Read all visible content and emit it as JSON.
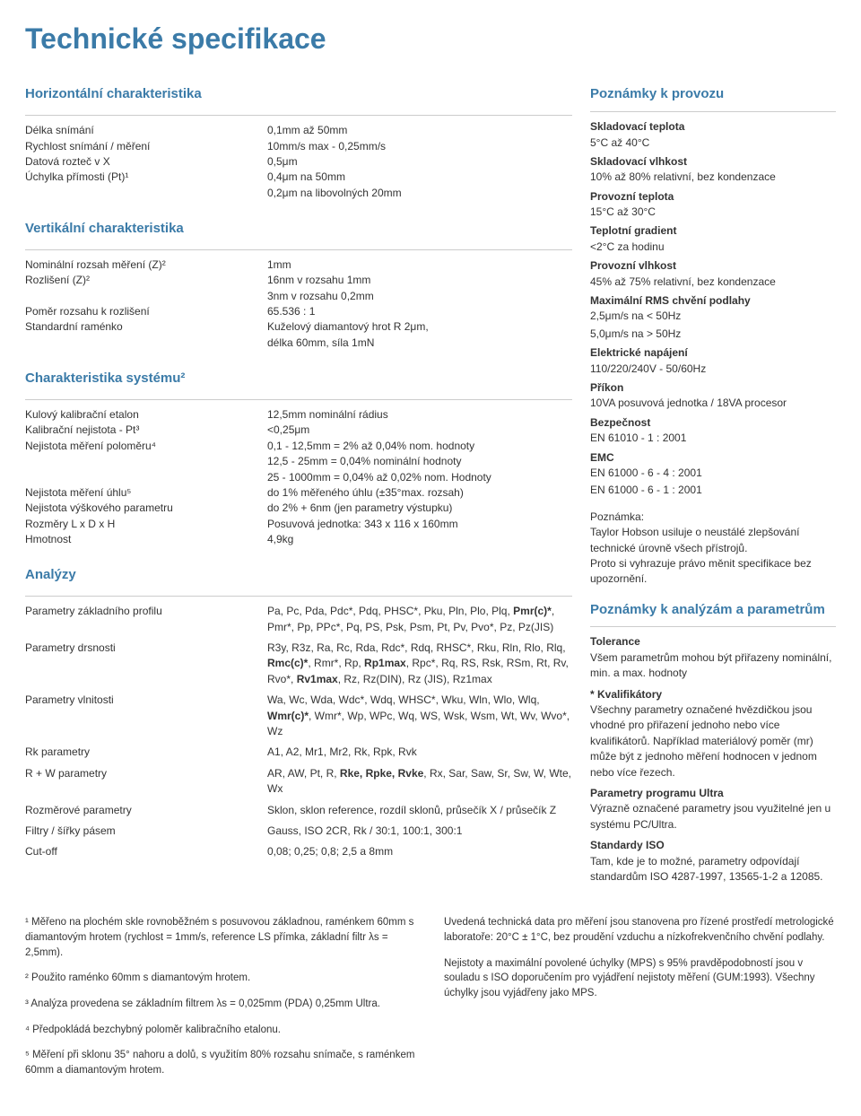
{
  "title": "Technické specifikace",
  "sections": {
    "horiz": {
      "heading": "Horizontální charakteristika",
      "rows": [
        {
          "label": "Délka snímání",
          "value": "0,1mm až 50mm"
        },
        {
          "label": "Rychlost snímání / měření",
          "value": "10mm/s max - 0,25mm/s"
        },
        {
          "label": "Datová rozteč v X",
          "value": "0,5μm"
        },
        {
          "label": "Úchylka přímosti (Pt)¹",
          "value": "0,4μm na 50mm"
        },
        {
          "label": "",
          "value": "0,2μm na libovolných 20mm"
        }
      ]
    },
    "vert": {
      "heading": "Vertikální charakteristika",
      "rows": [
        {
          "label": "Nominální rozsah měření (Z)²",
          "value": "1mm"
        },
        {
          "label": "Rozlišení (Z)²",
          "value": "16nm v rozsahu 1mm"
        },
        {
          "label": "",
          "value": "3nm v rozsahu 0,2mm"
        },
        {
          "label": "Poměr rozsahu k rozlišení",
          "value": "65.536 : 1"
        },
        {
          "label": "Standardní raménko",
          "value": "Kuželový diamantový hrot R 2μm,"
        },
        {
          "label": "",
          "value": "délka 60mm, síla 1mN"
        }
      ]
    },
    "sys": {
      "heading": "Charakteristika systému²",
      "rows": [
        {
          "label": "Kulový kalibrační etalon",
          "value": "12,5mm nominální rádius"
        },
        {
          "label": "Kalibrační nejistota - Pt³",
          "value": "<0,25μm"
        },
        {
          "label": "Nejistota měření poloměru⁴",
          "value": "0,1 - 12,5mm = 2% až 0,04% nom. hodnoty"
        },
        {
          "label": "",
          "value": "12,5 - 25mm = 0,04% nominální hodnoty"
        },
        {
          "label": "",
          "value": "25 - 1000mm = 0,04% až 0,02% nom. Hodnoty"
        },
        {
          "label": "Nejistota měření úhlu⁵",
          "value": "do 1% měřeného úhlu (±35°max. rozsah)"
        },
        {
          "label": "Nejistota výškového parametru",
          "value": "do 2% + 6nm (jen parametry výstupku)"
        },
        {
          "label": "Rozměry L x D x H",
          "value": "Posuvová jednotka: 343 x 116 x 160mm"
        },
        {
          "label": "Hmotnost",
          "value": "4,9kg"
        }
      ]
    },
    "analyzy": {
      "heading": "Analýzy",
      "rows": [
        {
          "label": "Parametry základního profilu",
          "value_html": "Pa, Pc, Pda, Pdc*, Pdq, PHSC*, Pku, Pln, Plo, Plq, <b>Pmr(c)*</b>, Pmr*, Pp, PPc*, Pq, PS, Psk, Psm, Pt, Pv, Pvo*, Pz, Pz(JIS)"
        },
        {
          "label": "Parametry drsnosti",
          "value_html": "R3y, R3z, Ra, Rc, Rda, Rdc*, Rdq, RHSC*, Rku, Rln, Rlo, Rlq, <b>Rmc(c)*</b>, Rmr*, Rp, <b>Rp1max</b>, Rpc*, Rq, RS, Rsk, RSm, Rt, Rv, Rvo*, <b>Rv1max</b>, Rz, Rz(DIN), Rz (JIS), Rz1max"
        },
        {
          "label": "Parametry vlnitosti",
          "value_html": "Wa, Wc, Wda, Wdc*, Wdq, WHSC*, Wku, Wln, Wlo, Wlq, <b>Wmr(c)*</b>, Wmr*, Wp, WPc, Wq, WS, Wsk, Wsm, Wt, Wv, Wvo*, Wz"
        },
        {
          "label": "Rk parametry",
          "value_html": "A1, A2, Mr1, Mr2, Rk, Rpk, Rvk"
        },
        {
          "label": "R + W parametry",
          "value_html": "AR, AW, Pt, R, <b>Rke, Rpke, Rvke</b>, Rx, Sar, Saw, Sr, Sw, W, Wte, Wx"
        },
        {
          "label": "Rozměrové parametry",
          "value_html": "Sklon, sklon reference, rozdíl sklonů, průsečík X / průsečík Z"
        },
        {
          "label": "Filtry / šířky pásem",
          "value_html": "Gauss, ISO 2CR, Rk / 30:1, 100:1, 300:1"
        },
        {
          "label": "Cut-off",
          "value_html": "0,08; 0,25; 0,8; 2,5 a 8mm"
        }
      ]
    }
  },
  "right": {
    "provoz_heading": "Poznámky k provozu",
    "items": [
      {
        "h": "Skladovací teplota",
        "t": "5°C až 40°C"
      },
      {
        "h": "Skladovací vlhkost",
        "t": "10% až 80% relativní, bez kondenzace"
      },
      {
        "h": "Provozní teplota",
        "t": "15°C až 30°C"
      },
      {
        "h": "Teplotní gradient",
        "t": "<2°C za hodinu"
      },
      {
        "h": "Provozní vlhkost",
        "t": "45% až 75% relativní, bez kondenzace"
      },
      {
        "h": "Maximální RMS chvění podlahy",
        "t": "2,5μm/s na < 50Hz"
      },
      {
        "h": "",
        "t": "5,0μm/s na > 50Hz"
      },
      {
        "h": "Elektrické napájení",
        "t": "110/220/240V - 50/60Hz"
      },
      {
        "h": "Příkon",
        "t": "10VA posuvová jednotka / 18VA procesor"
      },
      {
        "h": "Bezpečnost",
        "t": "EN 61010 - 1 : 2001"
      },
      {
        "h": "EMC",
        "t": "EN 61000 - 6 - 4 : 2001"
      },
      {
        "h": "",
        "t": "EN 61000 - 6 - 1 : 2001"
      }
    ],
    "note_h": "Poznámka:",
    "note_t": "Taylor Hobson usiluje o neustálé zlepšování technické úrovně všech přístrojů.\nProto si vyhrazuje právo měnit specifikace bez upozornění.",
    "anal_heading": "Poznámky k analýzám a parametrům",
    "anal_items": [
      {
        "h": "Tolerance",
        "t": "Všem parametrům mohou být přiřazeny nominální, min. a max. hodnoty"
      },
      {
        "h": "* Kvalifikátory",
        "t": "Všechny parametry označené hvězdičkou jsou vhodné pro přiřazení jednoho nebo více kvalifikátorů. Například materiálový poměr (mr) může být z jednoho měření hodnocen v jednom nebo více řezech."
      },
      {
        "h": "Parametry programu Ultra",
        "t": "Výrazně označené parametry jsou využitelné jen u systému PC/Ultra."
      },
      {
        "h": "Standardy ISO",
        "t": "Tam, kde je to možné, parametry odpovídají standardům ISO 4287-1997, 13565-1-2 a 12085."
      }
    ]
  },
  "footnotes_left": [
    "¹ Měřeno na plochém skle rovnoběžném s posuvovou základnou, raménkem 60mm s diamantovým hrotem (rychlost = 1mm/s, reference LS přímka, základní filtr λs = 2,5mm).",
    "² Použito raménko 60mm s diamantovým hrotem.",
    "³ Analýza provedena se základním filtrem λs = 0,025mm (PDA) 0,25mm Ultra.",
    "⁴ Předpokládá bezchybný poloměr kalibračního etalonu.",
    "⁵ Měření při sklonu 35° nahoru a dolů, s využitím 80% rozsahu snímače, s raménkem 60mm a diamantovým hrotem."
  ],
  "footnotes_right": [
    "Uvedená technická data pro měření jsou stanovena pro řízené prostředí metrologické laboratoře: 20°C ± 1°C, bez proudění vzduchu a nízkofrekvenčního chvění podlahy.",
    "Nejistoty a maximální povolené úchylky (MPS) s 95% pravděpodobností jsou v souladu s ISO doporučením pro vyjádření nejistoty měření (GUM:1993). Všechny úchylky jsou vyjádřeny jako MPS."
  ],
  "colors": {
    "heading": "#3b7ba8",
    "text": "#333333",
    "rule": "#cccccc",
    "background": "#ffffff"
  }
}
